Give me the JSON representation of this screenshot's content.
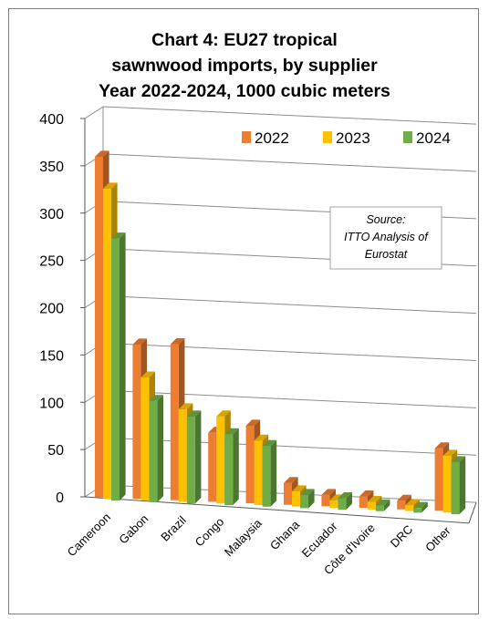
{
  "chart_data": {
    "type": "bar",
    "title_lines": [
      "Chart 4: EU27 tropical",
      "sawnwood imports, by supplier",
      "Year 2022-2024, 1000 cubic meters"
    ],
    "categories": [
      "Cameroon",
      "Gabon",
      "Brazil",
      "Congo",
      "Malaysia",
      "Ghana",
      "Ecuador",
      "Côte d'Ivoire",
      "DRC",
      "Other"
    ],
    "series": [
      {
        "name": "2022",
        "color": "#ED7D31",
        "values": [
          360,
          163,
          165,
          73,
          82,
          23,
          12,
          12,
          9,
          66
        ]
      },
      {
        "name": "2023",
        "color": "#FFC000",
        "values": [
          328,
          130,
          98,
          92,
          68,
          16,
          8,
          8,
          6,
          60
        ]
      },
      {
        "name": "2024",
        "color": "#70AD47",
        "values": [
          277,
          107,
          92,
          75,
          64,
          14,
          12,
          6,
          5,
          55
        ]
      }
    ],
    "yticks": [
      "0",
      "50",
      "100",
      "150",
      "200",
      "250",
      "300",
      "350",
      "400"
    ],
    "ylim": [
      0,
      400
    ],
    "grid": true,
    "legend_position": "top-right",
    "annotation_lines": [
      "Source:",
      "ITTO Analysis of",
      "Eurostat"
    ]
  }
}
